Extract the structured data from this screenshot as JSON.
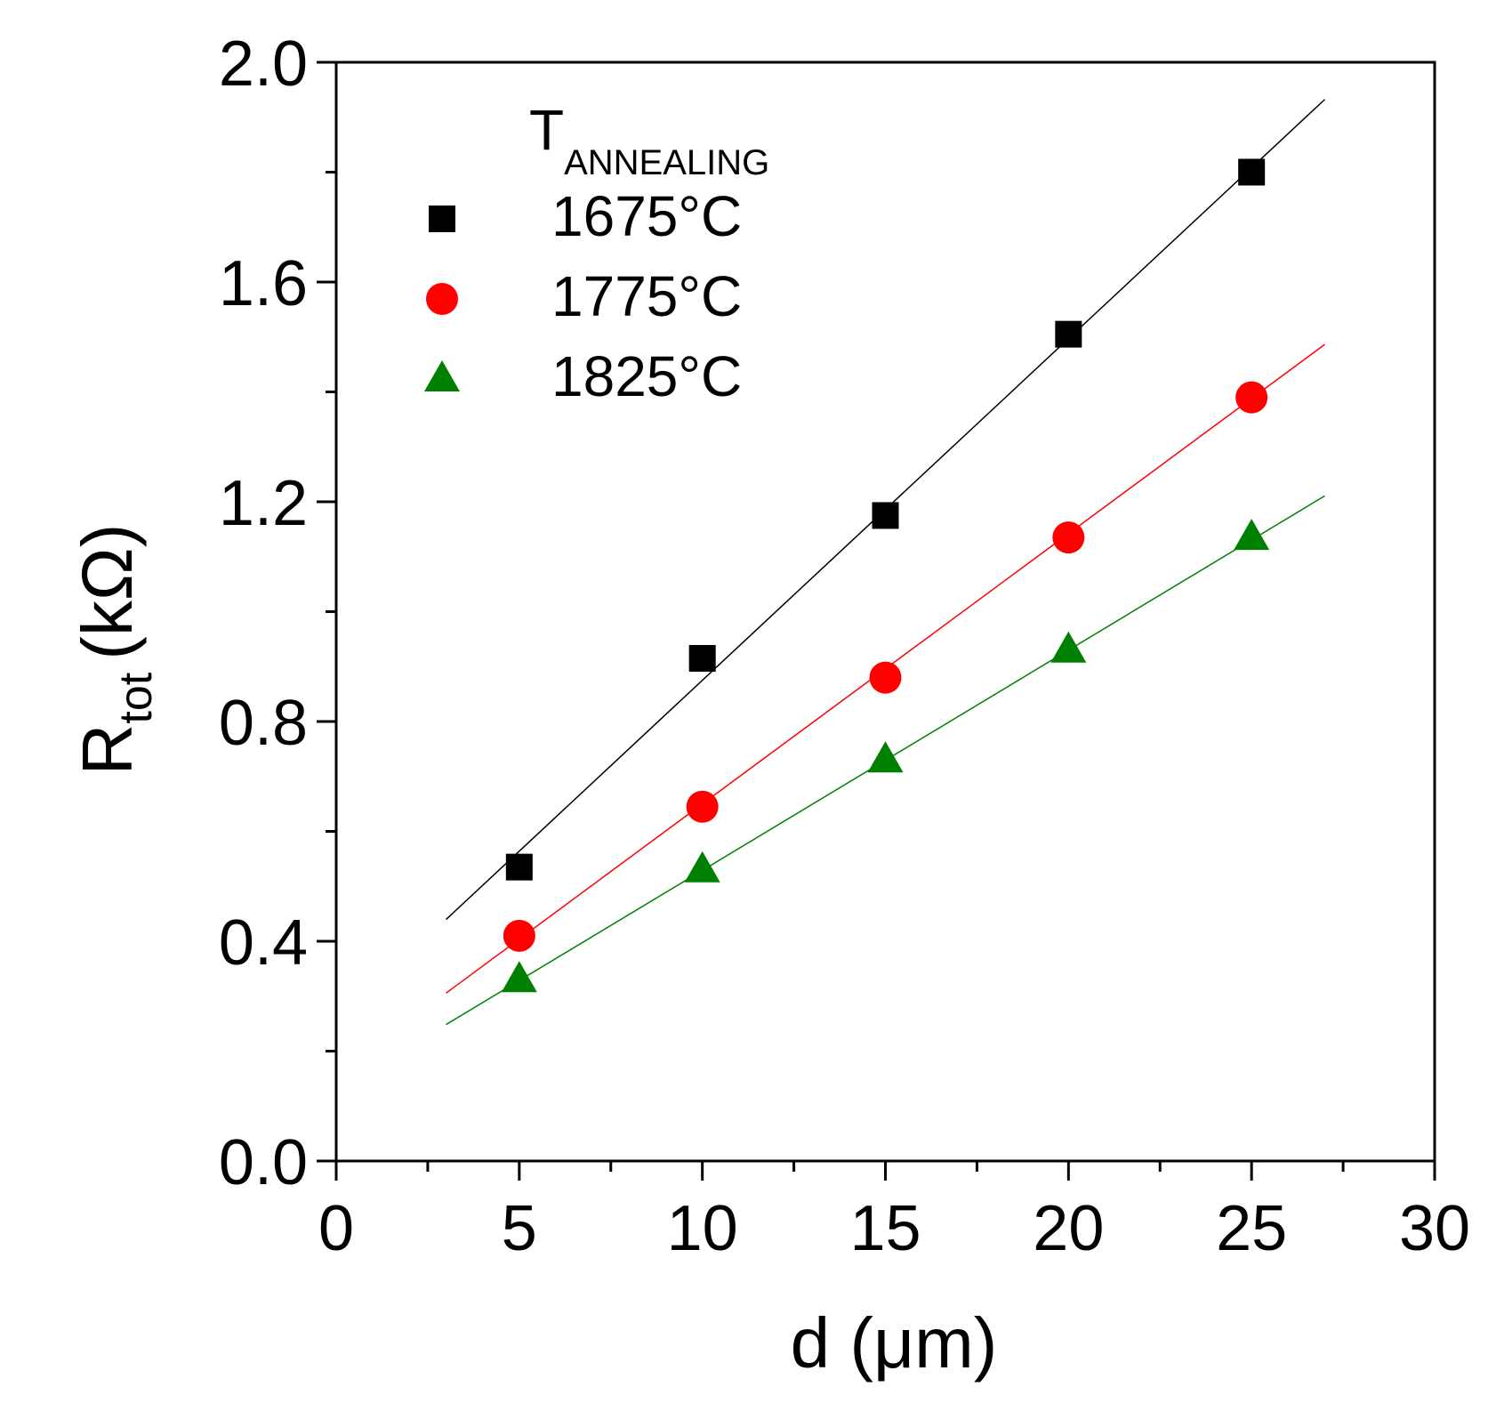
{
  "chart_data": {
    "type": "scatter",
    "xlabel": "d (μm)",
    "ylabel_main": "R",
    "ylabel_sub": "tot",
    "ylabel_unit": "(kΩ)",
    "xlim": [
      0,
      30
    ],
    "ylim": [
      0.0,
      2.0
    ],
    "x_ticks": [
      0,
      5,
      10,
      15,
      20,
      25,
      30
    ],
    "x_tick_labels": [
      "0",
      "5",
      "10",
      "15",
      "20",
      "25",
      "30"
    ],
    "y_ticks": [
      0.0,
      0.4,
      0.8,
      1.2,
      1.6,
      2.0
    ],
    "y_tick_labels": [
      "0.0",
      "0.4",
      "0.8",
      "1.2",
      "1.6",
      "2.0"
    ],
    "legend_title_main": "T",
    "legend_title_sub": "ANNEALING",
    "legend_position": "top-left",
    "x": [
      5,
      10,
      15,
      20,
      25
    ],
    "fit_range": [
      3,
      27
    ],
    "series": [
      {
        "name": "1675°C",
        "marker": "square",
        "color": "#000000",
        "values": [
          0.535,
          0.915,
          1.175,
          1.505,
          1.8
        ],
        "fit": {
          "slope": 0.0622,
          "intercept": 0.253
        }
      },
      {
        "name": "1775°C",
        "marker": "circle",
        "color": "#ff0000",
        "values": [
          0.41,
          0.645,
          0.88,
          1.135,
          1.39
        ],
        "fit": {
          "slope": 0.0492,
          "intercept": 0.158
        }
      },
      {
        "name": "1825°C",
        "marker": "triangle",
        "color": "#008000",
        "values": [
          0.33,
          0.53,
          0.73,
          0.93,
          1.135
        ],
        "fit": {
          "slope": 0.0401,
          "intercept": 0.128
        }
      }
    ]
  }
}
